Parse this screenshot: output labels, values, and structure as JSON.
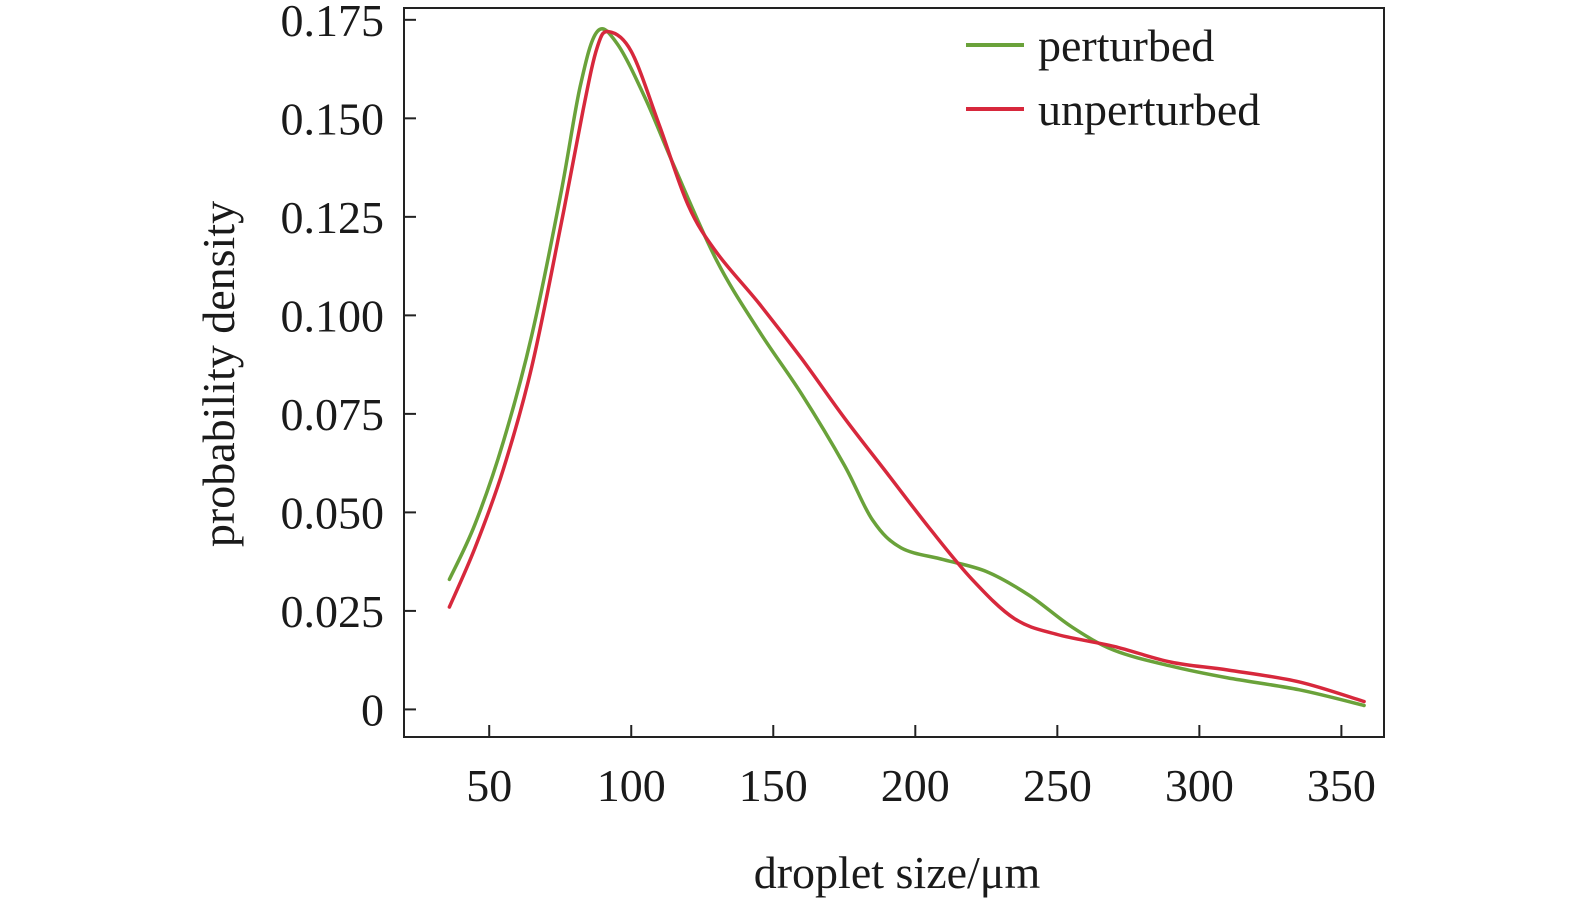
{
  "chart_data": {
    "type": "line",
    "xlabel": "droplet size/μm",
    "ylabel": "probability density",
    "xlim": [
      20,
      365
    ],
    "ylim": [
      -0.007,
      0.178
    ],
    "x_ticks": [
      50,
      100,
      150,
      200,
      250,
      300,
      350
    ],
    "x_tick_labels": [
      "50",
      "100",
      "150",
      "200",
      "250",
      "300",
      "350"
    ],
    "y_ticks": [
      0,
      0.025,
      0.05,
      0.075,
      0.1,
      0.125,
      0.15,
      0.175
    ],
    "y_tick_labels": [
      "0",
      "0.025",
      "0.050",
      "0.075",
      "0.100",
      "0.125",
      "0.150",
      "0.175"
    ],
    "grid": false,
    "legend_position": "top-right",
    "series": [
      {
        "name": "perturbed",
        "color": "#6aa23a",
        "points": [
          [
            36,
            0.033
          ],
          [
            45,
            0.047
          ],
          [
            55,
            0.068
          ],
          [
            65,
            0.095
          ],
          [
            75,
            0.13
          ],
          [
            82,
            0.158
          ],
          [
            88,
            0.172
          ],
          [
            95,
            0.169
          ],
          [
            105,
            0.155
          ],
          [
            115,
            0.138
          ],
          [
            130,
            0.114
          ],
          [
            145,
            0.096
          ],
          [
            160,
            0.08
          ],
          [
            175,
            0.062
          ],
          [
            185,
            0.048
          ],
          [
            195,
            0.041
          ],
          [
            210,
            0.038
          ],
          [
            225,
            0.035
          ],
          [
            240,
            0.029
          ],
          [
            255,
            0.021
          ],
          [
            270,
            0.015
          ],
          [
            290,
            0.011
          ],
          [
            310,
            0.008
          ],
          [
            335,
            0.005
          ],
          [
            358,
            0.001
          ]
        ]
      },
      {
        "name": "unperturbed",
        "color": "#d7283c",
        "points": [
          [
            36,
            0.026
          ],
          [
            45,
            0.041
          ],
          [
            55,
            0.061
          ],
          [
            65,
            0.087
          ],
          [
            75,
            0.122
          ],
          [
            83,
            0.152
          ],
          [
            88,
            0.168
          ],
          [
            92,
            0.172
          ],
          [
            100,
            0.167
          ],
          [
            110,
            0.148
          ],
          [
            120,
            0.128
          ],
          [
            130,
            0.116
          ],
          [
            145,
            0.103
          ],
          [
            160,
            0.089
          ],
          [
            175,
            0.074
          ],
          [
            190,
            0.06
          ],
          [
            205,
            0.046
          ],
          [
            220,
            0.033
          ],
          [
            235,
            0.023
          ],
          [
            250,
            0.019
          ],
          [
            270,
            0.016
          ],
          [
            290,
            0.012
          ],
          [
            310,
            0.01
          ],
          [
            335,
            0.007
          ],
          [
            358,
            0.002
          ]
        ]
      }
    ]
  }
}
